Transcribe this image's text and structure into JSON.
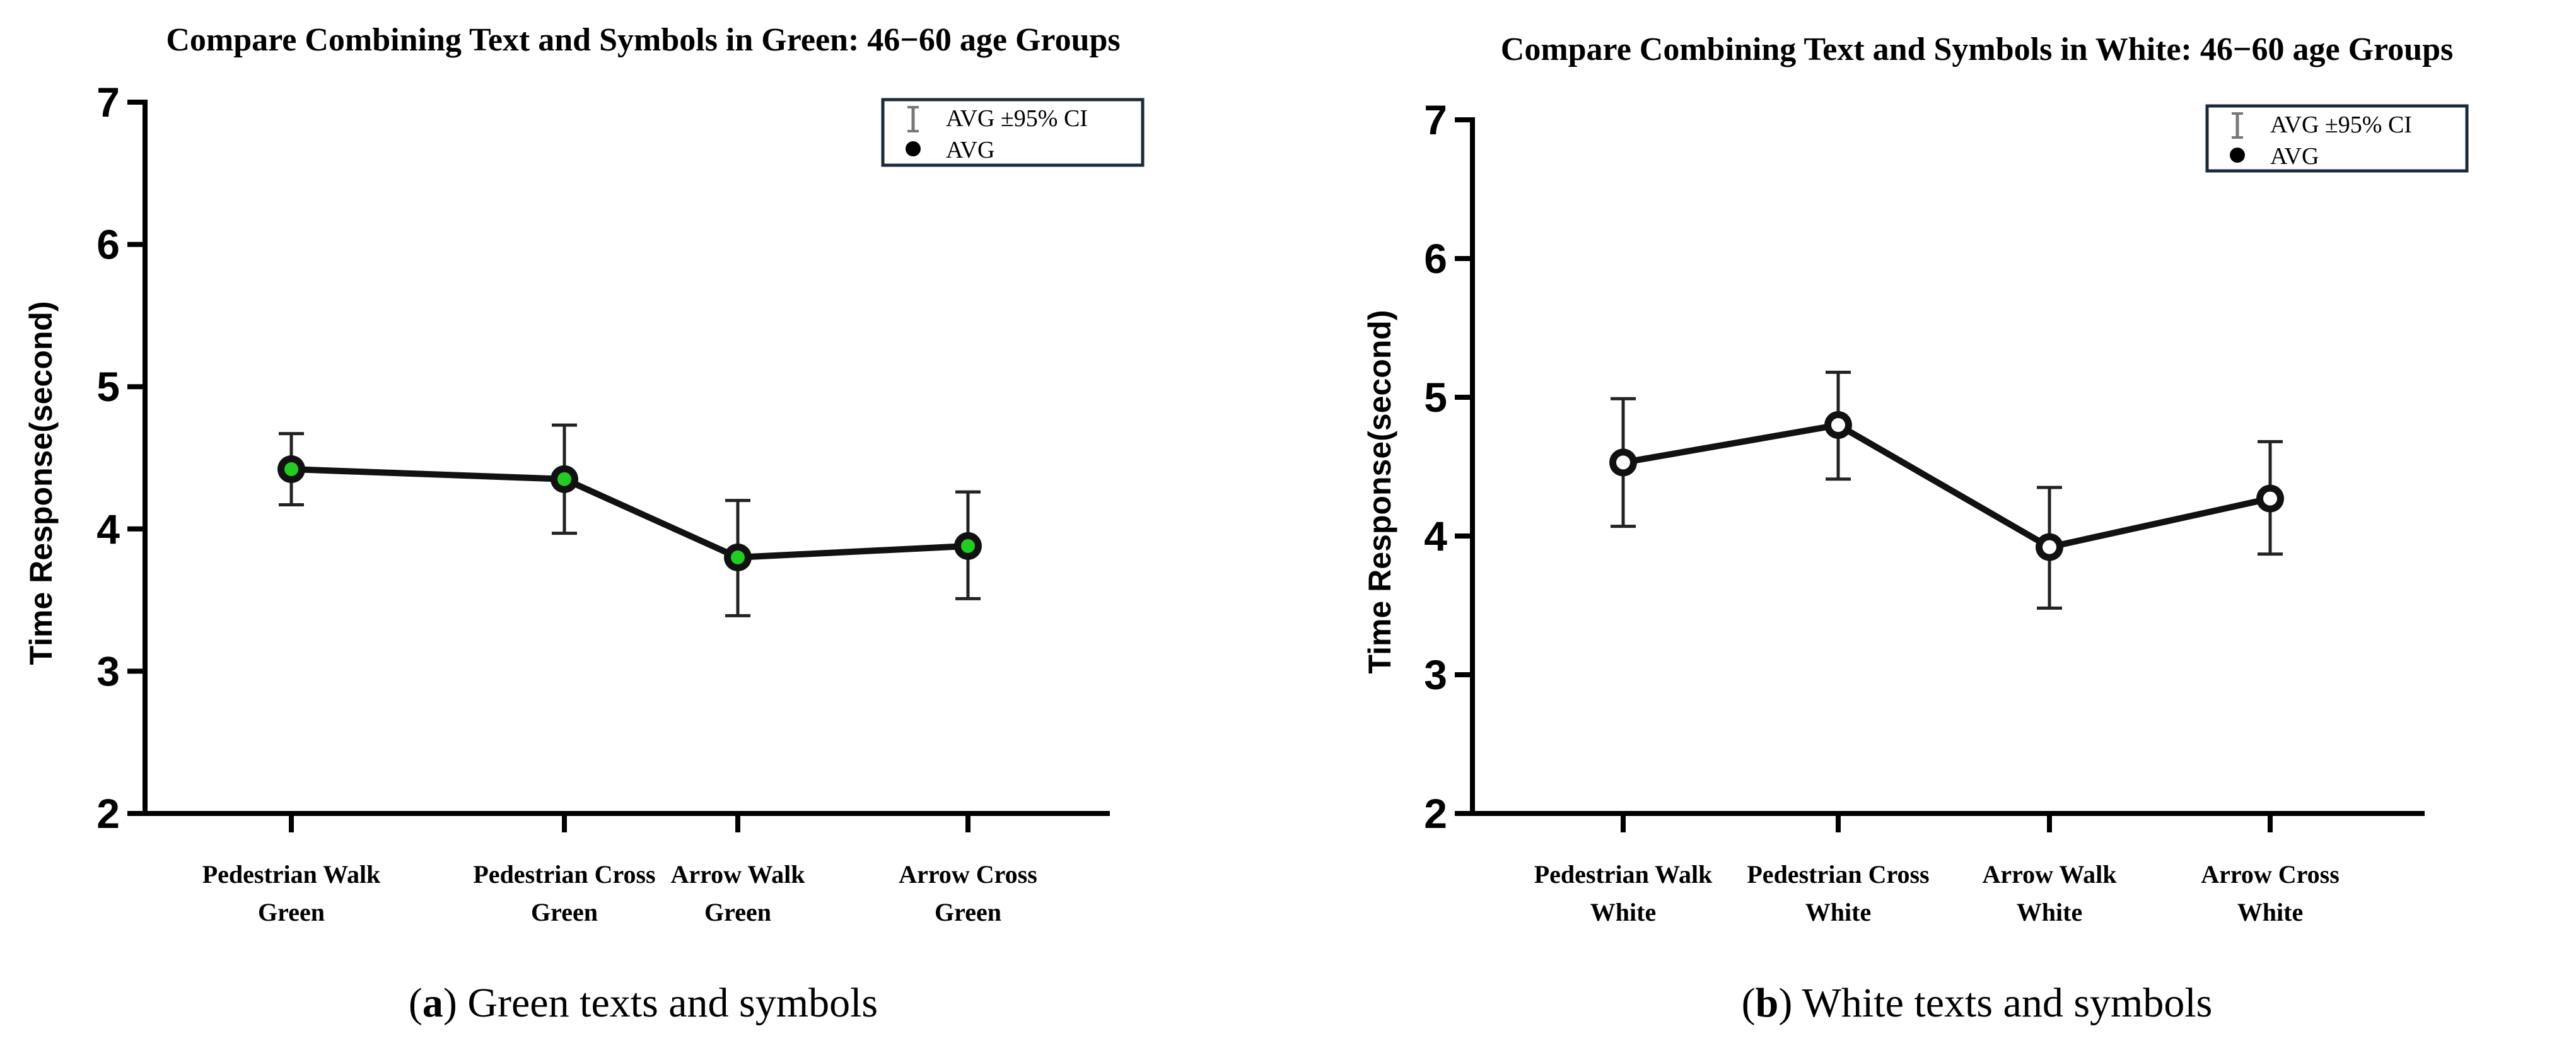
{
  "chart_data": [
    {
      "type": "line",
      "title": "Compare Combining Text and Symbols in Green: 46−60 age Groups",
      "ylabel": "Time Response(second)",
      "xlabel": "",
      "ylim": [
        2,
        7
      ],
      "yticks": [
        "2",
        "3",
        "4",
        "5",
        "6",
        "7"
      ],
      "categories": [
        [
          "Pedestrian Walk",
          "Green"
        ],
        [
          "Pedestrian Cross",
          "Green"
        ],
        [
          "Arrow  Walk",
          "Green"
        ],
        [
          "Arrow  Cross",
          "Green"
        ]
      ],
      "series": [
        {
          "name": "AVG",
          "values": [
            4.42,
            4.35,
            3.8,
            3.88
          ],
          "ci_low": [
            4.17,
            3.97,
            3.39,
            3.51
          ],
          "ci_high": [
            4.67,
            4.73,
            4.2,
            4.26
          ]
        }
      ],
      "marker_color": "#22cc22",
      "legend": [
        "AVG ±95% CI",
        "AVG"
      ],
      "legend_position": "top-right",
      "caption_letter": "a",
      "caption_text": "Green texts and symbols"
    },
    {
      "type": "line",
      "title": "Compare Combining Text and Symbols in White: 46−60 age Groups",
      "ylabel": "Time Response(second)",
      "xlabel": "",
      "ylim": [
        2,
        7
      ],
      "yticks": [
        "2",
        "3",
        "4",
        "5",
        "6",
        "7"
      ],
      "categories": [
        [
          "Pedestrian Walk",
          "White"
        ],
        [
          "Pedestrian Cross",
          "White"
        ],
        [
          "Arrow  Walk",
          "White"
        ],
        [
          "Arrow  Cross",
          "White"
        ]
      ],
      "series": [
        {
          "name": "AVG",
          "values": [
            4.53,
            4.8,
            3.92,
            4.27
          ],
          "ci_low": [
            4.07,
            4.41,
            3.48,
            3.87
          ],
          "ci_high": [
            4.99,
            5.18,
            4.35,
            4.68
          ]
        }
      ],
      "marker_color": "#ffffff",
      "legend": [
        "AVG ±95% CI",
        "AVG"
      ],
      "legend_position": "top-right",
      "caption_letter": "b",
      "caption_text": "White texts and symbols"
    }
  ]
}
